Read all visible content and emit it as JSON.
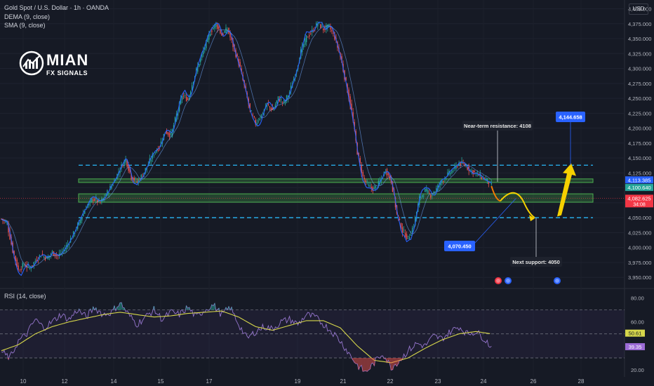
{
  "header": {
    "title": "Gold Spot / U.S. Dollar · 1h · OANDA",
    "indicator1": "DEMA (9, close)",
    "indicator2": "SMA (9, close)",
    "currency": "USD",
    "rsi_label": "RSI (14, close)"
  },
  "logo": {
    "line1": "MIAN",
    "line2": "FX SIGNALS"
  },
  "colors": {
    "background": "#161a25",
    "candle_up": "#26a69a",
    "candle_down": "#ef5350",
    "dema": "#2962ff",
    "sma": "#d6d64b",
    "zone": "#4caf50",
    "level_line": "#29b6f6",
    "rsi": "#9575cd",
    "arrow": "#f5d000",
    "label_blue": "#2962ff",
    "price_red": "#f23645"
  },
  "chart_data": [
    {
      "type": "candlestick",
      "title": "Gold Spot / U.S. Dollar · 1h · OANDA",
      "ylim": [
        3935,
        4410
      ],
      "y_ticks": [
        "4,400.000",
        "4,375.000",
        "4,350.000",
        "4,325.000",
        "4,300.000",
        "4,275.000",
        "4,250.000",
        "4,225.000",
        "4,200.000",
        "4,175.000",
        "4,150.000",
        "4,125.000",
        "4,100.000",
        "4,075.000",
        "4,050.000",
        "4,025.000",
        "4,000.000",
        "3,975.000",
        "3,950.000"
      ],
      "y_tick_values": [
        4400,
        4375,
        4350,
        4325,
        4300,
        4275,
        4250,
        4225,
        4200,
        4175,
        4150,
        4125,
        4100,
        4075,
        4050,
        4025,
        4000,
        3975,
        3950
      ],
      "x_ticks": [
        "10",
        "12",
        "14",
        "15",
        "17",
        "19",
        "21",
        "22",
        "23",
        "24",
        "26",
        "28"
      ],
      "key_levels": {
        "dashed_upper": 4138,
        "dashed_lower": 4050,
        "resistance_zone": [
          4109,
          4115
        ],
        "support_zone": [
          4076,
          4090
        ]
      },
      "price_path": [
        [
          0,
          4048
        ],
        [
          4,
          4040
        ],
        [
          8,
          3995
        ],
        [
          12,
          3962
        ],
        [
          16,
          3972
        ],
        [
          20,
          3965
        ],
        [
          24,
          3978
        ],
        [
          28,
          3988
        ],
        [
          32,
          3982
        ],
        [
          36,
          3992
        ],
        [
          40,
          3986
        ],
        [
          45,
          3998
        ],
        [
          50,
          4018
        ],
        [
          55,
          4042
        ],
        [
          60,
          4068
        ],
        [
          65,
          4082
        ],
        [
          70,
          4075
        ],
        [
          75,
          4092
        ],
        [
          80,
          4112
        ],
        [
          84,
          4132
        ],
        [
          88,
          4148
        ],
        [
          92,
          4118
        ],
        [
          96,
          4110
        ],
        [
          100,
          4122
        ],
        [
          104,
          4140
        ],
        [
          108,
          4158
        ],
        [
          112,
          4170
        ],
        [
          116,
          4195
        ],
        [
          120,
          4188
        ],
        [
          124,
          4222
        ],
        [
          128,
          4255
        ],
        [
          132,
          4248
        ],
        [
          136,
          4282
        ],
        [
          140,
          4310
        ],
        [
          144,
          4336
        ],
        [
          148,
          4362
        ],
        [
          152,
          4375
        ],
        [
          156,
          4356
        ],
        [
          160,
          4366
        ],
        [
          164,
          4338
        ],
        [
          168,
          4310
        ],
        [
          172,
          4270
        ],
        [
          176,
          4230
        ],
        [
          180,
          4208
        ],
        [
          184,
          4222
        ],
        [
          188,
          4240
        ],
        [
          192,
          4230
        ],
        [
          196,
          4250
        ],
        [
          200,
          4242
        ],
        [
          204,
          4260
        ],
        [
          208,
          4290
        ],
        [
          212,
          4328
        ],
        [
          216,
          4352
        ],
        [
          220,
          4362
        ],
        [
          224,
          4376
        ],
        [
          228,
          4366
        ],
        [
          232,
          4370
        ],
        [
          236,
          4352
        ],
        [
          240,
          4320
        ],
        [
          244,
          4275
        ],
        [
          248,
          4228
        ],
        [
          252,
          4160
        ],
        [
          256,
          4118
        ],
        [
          260,
          4102
        ],
        [
          264,
          4098
        ],
        [
          268,
          4110
        ],
        [
          272,
          4130
        ],
        [
          276,
          4112
        ],
        [
          280,
          4056
        ],
        [
          284,
          4028
        ],
        [
          288,
          4015
        ],
        [
          292,
          4038
        ],
        [
          296,
          4082
        ],
        [
          300,
          4095
        ],
        [
          304,
          4088
        ],
        [
          308,
          4098
        ],
        [
          312,
          4112
        ],
        [
          316,
          4122
        ],
        [
          320,
          4130
        ],
        [
          324,
          4142
        ],
        [
          328,
          4138
        ],
        [
          332,
          4130
        ],
        [
          336,
          4124
        ],
        [
          340,
          4118
        ],
        [
          344,
          4112
        ],
        [
          347,
          4103
        ]
      ],
      "annotations": [
        {
          "text": "Near-term resistance: 4108"
        },
        {
          "text": "4,144.658"
        },
        {
          "text": "4,070.450"
        },
        {
          "text": "Next support: 4050"
        }
      ],
      "price_labels": [
        {
          "text": "4,113.385",
          "value": 4113.385
        },
        {
          "text": "4,100.640",
          "value": 4100.64
        },
        {
          "text": "4,082.625",
          "value": 4082.625,
          "sub": "34:08"
        }
      ]
    },
    {
      "type": "line",
      "title": "RSI (14, close)",
      "ylim": [
        16,
        86
      ],
      "y_ticks": [
        "80.00",
        "60.00",
        "40.00",
        "20.00"
      ],
      "y_tick_values": [
        80,
        60,
        40,
        20
      ],
      "bands": {
        "upper": 70,
        "middle": 50,
        "lower": 30
      },
      "rsi_values": [
        [
          0,
          35
        ],
        [
          6,
          30
        ],
        [
          12,
          44
        ],
        [
          18,
          50
        ],
        [
          24,
          62
        ],
        [
          30,
          55
        ],
        [
          36,
          60
        ],
        [
          42,
          66
        ],
        [
          48,
          62
        ],
        [
          54,
          70
        ],
        [
          60,
          64
        ],
        [
          66,
          72
        ],
        [
          72,
          66
        ],
        [
          78,
          68
        ],
        [
          84,
          76
        ],
        [
          90,
          66
        ],
        [
          96,
          58
        ],
        [
          102,
          64
        ],
        [
          108,
          70
        ],
        [
          114,
          62
        ],
        [
          120,
          68
        ],
        [
          126,
          66
        ],
        [
          132,
          72
        ],
        [
          138,
          64
        ],
        [
          144,
          70
        ],
        [
          150,
          74
        ],
        [
          156,
          66
        ],
        [
          162,
          72
        ],
        [
          168,
          58
        ],
        [
          174,
          46
        ],
        [
          180,
          52
        ],
        [
          186,
          56
        ],
        [
          192,
          54
        ],
        [
          198,
          60
        ],
        [
          204,
          62
        ],
        [
          210,
          58
        ],
        [
          216,
          66
        ],
        [
          222,
          64
        ],
        [
          228,
          58
        ],
        [
          234,
          52
        ],
        [
          240,
          44
        ],
        [
          246,
          34
        ],
        [
          252,
          24
        ],
        [
          258,
          18
        ],
        [
          264,
          26
        ],
        [
          270,
          34
        ],
        [
          276,
          22
        ],
        [
          282,
          28
        ],
        [
          288,
          36
        ],
        [
          294,
          42
        ],
        [
          300,
          40
        ],
        [
          306,
          48
        ],
        [
          312,
          46
        ],
        [
          318,
          52
        ],
        [
          324,
          56
        ],
        [
          330,
          50
        ],
        [
          336,
          52
        ],
        [
          342,
          46
        ],
        [
          347,
          39
        ]
      ],
      "ma_values": [
        [
          0,
          36
        ],
        [
          12,
          41
        ],
        [
          24,
          50
        ],
        [
          36,
          56
        ],
        [
          48,
          60
        ],
        [
          60,
          63
        ],
        [
          72,
          66
        ],
        [
          84,
          68
        ],
        [
          96,
          66
        ],
        [
          108,
          64
        ],
        [
          120,
          65
        ],
        [
          132,
          67
        ],
        [
          144,
          68
        ],
        [
          156,
          69
        ],
        [
          168,
          64
        ],
        [
          180,
          56
        ],
        [
          192,
          53
        ],
        [
          204,
          57
        ],
        [
          216,
          61
        ],
        [
          228,
          61
        ],
        [
          240,
          55
        ],
        [
          252,
          40
        ],
        [
          264,
          28
        ],
        [
          276,
          26
        ],
        [
          288,
          30
        ],
        [
          300,
          38
        ],
        [
          312,
          45
        ],
        [
          324,
          50
        ],
        [
          336,
          52
        ],
        [
          347,
          50
        ]
      ],
      "value_labels": [
        {
          "text": "50.61",
          "value": 50.61
        },
        {
          "text": "39.35",
          "value": 39.35
        }
      ]
    }
  ]
}
